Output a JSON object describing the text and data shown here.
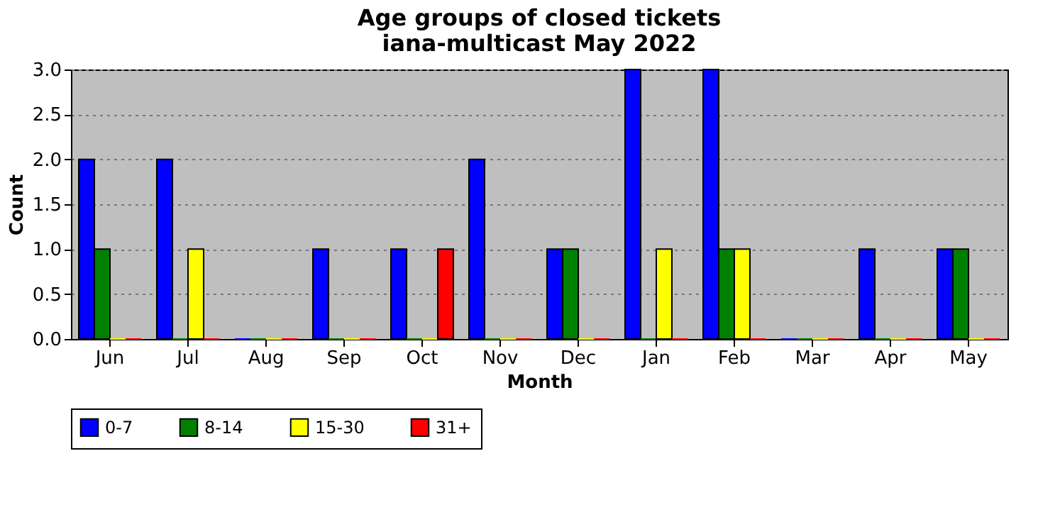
{
  "chart_data": {
    "type": "bar",
    "title": "Age groups of closed tickets",
    "subtitle": "iana-multicast May 2022",
    "xlabel": "Month",
    "ylabel": "Count",
    "categories": [
      "Jun",
      "Jul",
      "Aug",
      "Sep",
      "Oct",
      "Nov",
      "Dec",
      "Jan",
      "Feb",
      "Mar",
      "Apr",
      "May"
    ],
    "series": [
      {
        "name": "0-7",
        "color": "#0000ff",
        "values": [
          2,
          2,
          0,
          1,
          1,
          2,
          1,
          3,
          3,
          0,
          1,
          1
        ]
      },
      {
        "name": "8-14",
        "color": "#008000",
        "values": [
          1,
          0,
          0,
          0,
          0,
          0,
          1,
          0,
          1,
          0,
          0,
          1
        ]
      },
      {
        "name": "15-30",
        "color": "#ffff00",
        "values": [
          0,
          1,
          0,
          0,
          0,
          0,
          0,
          1,
          1,
          0,
          0,
          0
        ]
      },
      {
        "name": "31+",
        "color": "#ff0000",
        "values": [
          0,
          0,
          0,
          0,
          1,
          0,
          0,
          0,
          0,
          0,
          0,
          0
        ]
      }
    ],
    "ylim": [
      0,
      3
    ],
    "yticks": [
      {
        "value": 0,
        "label": "0.0"
      },
      {
        "value": 0.5,
        "label": "0.5"
      },
      {
        "value": 1,
        "label": "1.0"
      },
      {
        "value": 1.5,
        "label": "1.5"
      },
      {
        "value": 2,
        "label": "2.0"
      },
      {
        "value": 2.5,
        "label": "2.5"
      },
      {
        "value": 3,
        "label": "3.0"
      }
    ],
    "grid": "y",
    "legend": "bottom"
  }
}
